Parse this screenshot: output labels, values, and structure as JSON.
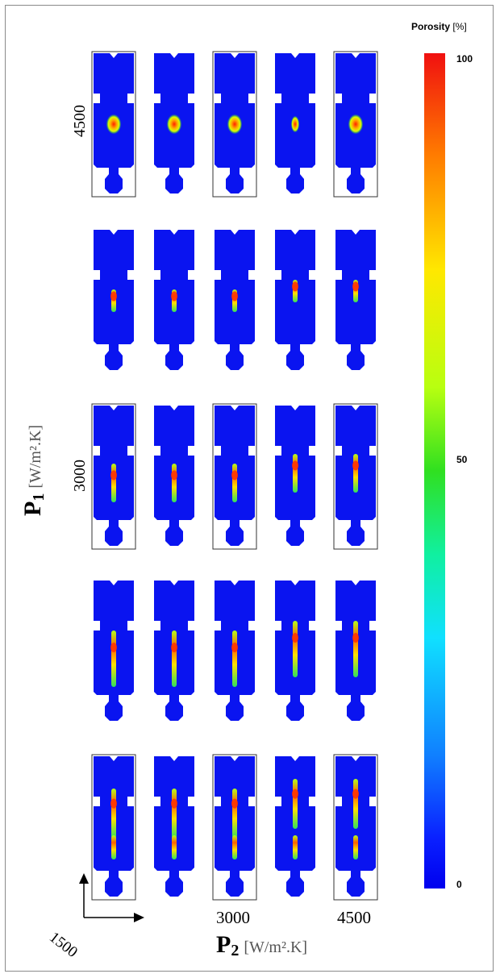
{
  "colorbar": {
    "title": "Porosity",
    "unit": "[%]",
    "tick_max": "100",
    "tick_mid": "50",
    "tick_min": "0"
  },
  "axes": {
    "p1_symbol": "P",
    "p1_sub": "1",
    "p1_unit": "[W/m².K]",
    "p2_symbol": "P",
    "p2_sub": "2",
    "p2_unit": "[W/m².K]",
    "row_label_top": "4500",
    "row_label_mid": "3000",
    "col_label_mid": "3000",
    "col_label_right": "4500",
    "origin_label": "1500"
  },
  "colors": {
    "part_blue": "#0a14f0",
    "background": "#ffffff",
    "frame": "#8a8a8a"
  },
  "grid": {
    "rows": 5,
    "cols": 5
  }
}
